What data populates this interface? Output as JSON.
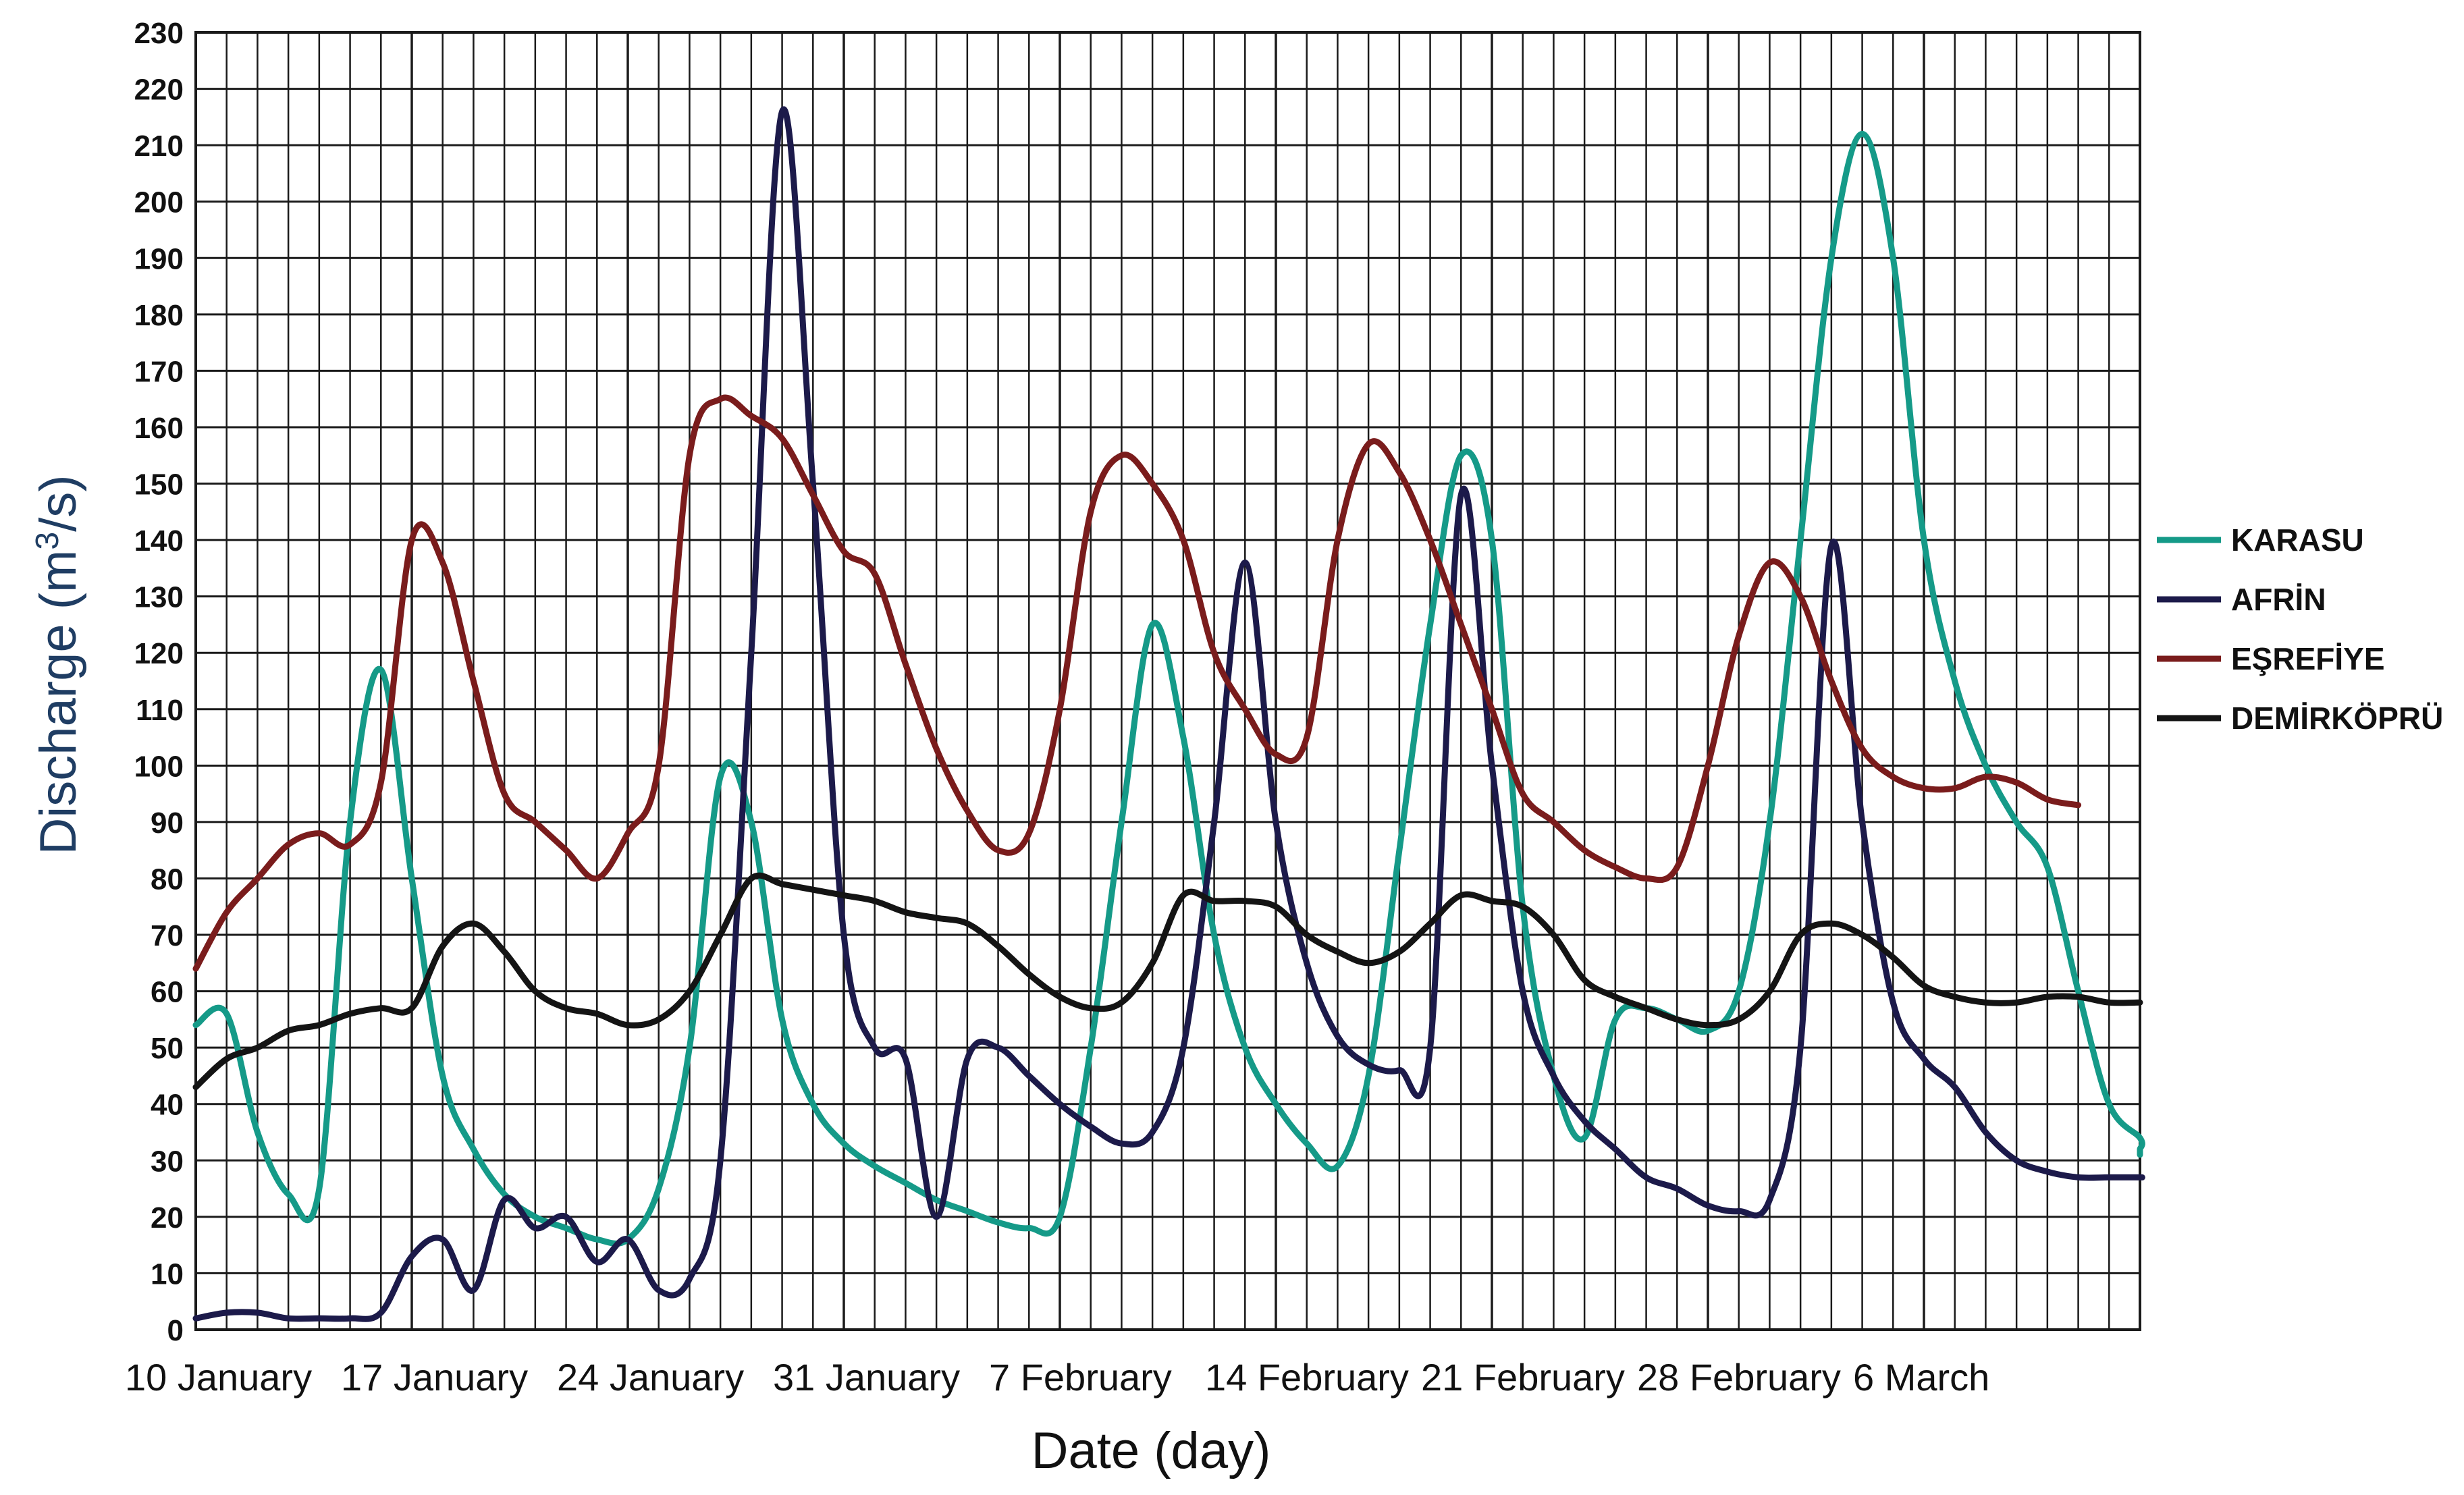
{
  "chart_data": {
    "type": "line",
    "xlabel": "Date (day)",
    "ylabel_main": "Discharge (m",
    "ylabel_sup": "3",
    "ylabel_tail": "/s)",
    "ylim": [
      0,
      230
    ],
    "yticks": [
      0,
      10,
      20,
      30,
      40,
      50,
      60,
      70,
      80,
      90,
      100,
      110,
      120,
      130,
      140,
      150,
      160,
      170,
      180,
      190,
      200,
      210,
      220,
      230
    ],
    "xlim": [
      0,
      63
    ],
    "x_unit": "days since 10 January",
    "xtick_labels": [
      {
        "day": 0,
        "label": "10 January"
      },
      {
        "day": 7,
        "label": "17 January"
      },
      {
        "day": 14,
        "label": "24 January"
      },
      {
        "day": 21,
        "label": "31 January"
      },
      {
        "day": 28,
        "label": "7 February"
      },
      {
        "day": 35,
        "label": "14 February"
      },
      {
        "day": 42,
        "label": "21 February"
      },
      {
        "day": 49,
        "label": "28 February"
      },
      {
        "day": 56,
        "label": "6 March"
      }
    ],
    "grid": true,
    "legend_position": "right",
    "series": [
      {
        "name": "KARASU",
        "color": "#159a88",
        "points": [
          [
            0,
            54
          ],
          [
            1,
            56
          ],
          [
            2,
            35
          ],
          [
            3,
            24
          ],
          [
            4,
            25
          ],
          [
            5,
            90
          ],
          [
            6,
            117
          ],
          [
            7,
            80
          ],
          [
            8,
            45
          ],
          [
            9,
            32
          ],
          [
            10,
            24
          ],
          [
            11,
            20
          ],
          [
            12,
            18
          ],
          [
            13,
            16
          ],
          [
            14,
            16
          ],
          [
            15,
            25
          ],
          [
            16,
            50
          ],
          [
            17,
            98
          ],
          [
            18,
            90
          ],
          [
            19,
            55
          ],
          [
            20,
            40
          ],
          [
            21,
            33
          ],
          [
            22,
            29
          ],
          [
            23,
            26
          ],
          [
            24,
            23
          ],
          [
            25,
            21
          ],
          [
            26,
            19
          ],
          [
            27,
            18
          ],
          [
            28,
            20
          ],
          [
            29,
            50
          ],
          [
            30,
            90
          ],
          [
            31,
            125
          ],
          [
            32,
            105
          ],
          [
            33,
            70
          ],
          [
            34,
            50
          ],
          [
            35,
            40
          ],
          [
            36,
            33
          ],
          [
            37,
            29
          ],
          [
            38,
            45
          ],
          [
            39,
            85
          ],
          [
            40,
            125
          ],
          [
            41,
            155
          ],
          [
            42,
            140
          ],
          [
            43,
            75
          ],
          [
            44,
            45
          ],
          [
            45,
            34
          ],
          [
            46,
            55
          ],
          [
            47,
            57
          ],
          [
            48,
            55
          ],
          [
            49,
            53
          ],
          [
            50,
            60
          ],
          [
            51,
            90
          ],
          [
            52,
            140
          ],
          [
            53,
            190
          ],
          [
            54,
            212
          ],
          [
            55,
            190
          ],
          [
            56,
            140
          ],
          [
            57,
            115
          ],
          [
            58,
            100
          ],
          [
            59,
            90
          ],
          [
            60,
            82
          ],
          [
            61,
            60
          ],
          [
            62,
            40
          ],
          [
            63,
            34
          ],
          [
            64,
            32
          ],
          [
            65,
            32
          ],
          [
            66,
            31
          ]
        ]
      },
      {
        "name": "AFRİN",
        "color": "#1c1a4a",
        "points": [
          [
            0,
            2
          ],
          [
            1,
            3
          ],
          [
            2,
            3
          ],
          [
            3,
            2
          ],
          [
            4,
            2
          ],
          [
            5,
            2
          ],
          [
            6,
            3
          ],
          [
            7,
            13
          ],
          [
            8,
            16
          ],
          [
            9,
            7
          ],
          [
            10,
            23
          ],
          [
            11,
            18
          ],
          [
            12,
            20
          ],
          [
            13,
            12
          ],
          [
            14,
            16
          ],
          [
            15,
            7
          ],
          [
            16,
            9
          ],
          [
            17,
            30
          ],
          [
            18,
            120
          ],
          [
            19,
            216
          ],
          [
            20,
            150
          ],
          [
            21,
            70
          ],
          [
            22,
            50
          ],
          [
            23,
            48
          ],
          [
            24,
            20
          ],
          [
            25,
            48
          ],
          [
            26,
            50
          ],
          [
            27,
            45
          ],
          [
            28,
            40
          ],
          [
            29,
            36
          ],
          [
            30,
            33
          ],
          [
            31,
            35
          ],
          [
            32,
            50
          ],
          [
            33,
            90
          ],
          [
            34,
            136
          ],
          [
            35,
            90
          ],
          [
            36,
            65
          ],
          [
            37,
            52
          ],
          [
            38,
            47
          ],
          [
            39,
            46
          ],
          [
            40,
            50
          ],
          [
            41,
            148
          ],
          [
            42,
            100
          ],
          [
            43,
            60
          ],
          [
            44,
            45
          ],
          [
            45,
            37
          ],
          [
            46,
            32
          ],
          [
            47,
            27
          ],
          [
            48,
            25
          ],
          [
            49,
            22
          ],
          [
            50,
            21
          ],
          [
            51,
            23
          ],
          [
            52,
            50
          ],
          [
            53,
            139
          ],
          [
            54,
            90
          ],
          [
            55,
            58
          ],
          [
            56,
            48
          ],
          [
            57,
            43
          ],
          [
            58,
            35
          ],
          [
            59,
            30
          ],
          [
            60,
            28
          ],
          [
            61,
            27
          ],
          [
            62,
            27
          ],
          [
            63,
            27
          ],
          [
            64,
            27
          ]
        ]
      },
      {
        "name": "EŞREFİYE",
        "color": "#7a1c1c",
        "points": [
          [
            0,
            64
          ],
          [
            1,
            74
          ],
          [
            2,
            80
          ],
          [
            3,
            86
          ],
          [
            4,
            88
          ],
          [
            5,
            86
          ],
          [
            6,
            97
          ],
          [
            7,
            140
          ],
          [
            8,
            136
          ],
          [
            9,
            115
          ],
          [
            10,
            95
          ],
          [
            11,
            90
          ],
          [
            12,
            85
          ],
          [
            13,
            80
          ],
          [
            14,
            88
          ],
          [
            15,
            100
          ],
          [
            16,
            155
          ],
          [
            17,
            165
          ],
          [
            18,
            162
          ],
          [
            19,
            158
          ],
          [
            20,
            148
          ],
          [
            21,
            138
          ],
          [
            22,
            134
          ],
          [
            23,
            118
          ],
          [
            24,
            103
          ],
          [
            25,
            92
          ],
          [
            26,
            85
          ],
          [
            27,
            88
          ],
          [
            28,
            110
          ],
          [
            29,
            145
          ],
          [
            30,
            155
          ],
          [
            31,
            150
          ],
          [
            32,
            140
          ],
          [
            33,
            120
          ],
          [
            34,
            110
          ],
          [
            35,
            102
          ],
          [
            36,
            105
          ],
          [
            37,
            140
          ],
          [
            38,
            157
          ],
          [
            39,
            152
          ],
          [
            40,
            140
          ],
          [
            41,
            125
          ],
          [
            42,
            110
          ],
          [
            43,
            95
          ],
          [
            44,
            90
          ],
          [
            45,
            85
          ],
          [
            46,
            82
          ],
          [
            47,
            80
          ],
          [
            48,
            82
          ],
          [
            49,
            100
          ],
          [
            50,
            123
          ],
          [
            51,
            136
          ],
          [
            52,
            130
          ],
          [
            53,
            115
          ],
          [
            54,
            103
          ],
          [
            55,
            98
          ],
          [
            56,
            96
          ],
          [
            57,
            96
          ],
          [
            58,
            98
          ],
          [
            59,
            97
          ],
          [
            60,
            94
          ],
          [
            61,
            93
          ]
        ]
      },
      {
        "name": "DEMİRKÖPRÜ",
        "color": "#141414",
        "points": [
          [
            0,
            43
          ],
          [
            1,
            48
          ],
          [
            2,
            50
          ],
          [
            3,
            53
          ],
          [
            4,
            54
          ],
          [
            5,
            56
          ],
          [
            6,
            57
          ],
          [
            7,
            57
          ],
          [
            8,
            68
          ],
          [
            9,
            72
          ],
          [
            10,
            67
          ],
          [
            11,
            60
          ],
          [
            12,
            57
          ],
          [
            13,
            56
          ],
          [
            14,
            54
          ],
          [
            15,
            55
          ],
          [
            16,
            60
          ],
          [
            17,
            70
          ],
          [
            18,
            80
          ],
          [
            19,
            79
          ],
          [
            20,
            78
          ],
          [
            21,
            77
          ],
          [
            22,
            76
          ],
          [
            23,
            74
          ],
          [
            24,
            73
          ],
          [
            25,
            72
          ],
          [
            26,
            68
          ],
          [
            27,
            63
          ],
          [
            28,
            59
          ],
          [
            29,
            57
          ],
          [
            30,
            58
          ],
          [
            31,
            65
          ],
          [
            32,
            77
          ],
          [
            33,
            76
          ],
          [
            34,
            76
          ],
          [
            35,
            75
          ],
          [
            36,
            70
          ],
          [
            37,
            67
          ],
          [
            38,
            65
          ],
          [
            39,
            67
          ],
          [
            40,
            72
          ],
          [
            41,
            77
          ],
          [
            42,
            76
          ],
          [
            43,
            75
          ],
          [
            44,
            70
          ],
          [
            45,
            62
          ],
          [
            46,
            59
          ],
          [
            47,
            57
          ],
          [
            48,
            55
          ],
          [
            49,
            54
          ],
          [
            50,
            55
          ],
          [
            51,
            60
          ],
          [
            52,
            70
          ],
          [
            53,
            72
          ],
          [
            54,
            70
          ],
          [
            55,
            66
          ],
          [
            56,
            61
          ],
          [
            57,
            59
          ],
          [
            58,
            58
          ],
          [
            59,
            58
          ],
          [
            60,
            59
          ],
          [
            61,
            59
          ],
          [
            62,
            58
          ],
          [
            63,
            58
          ]
        ]
      }
    ]
  },
  "legend": {
    "items": [
      {
        "label": "KARASU",
        "color": "#159a88"
      },
      {
        "label": "AFRİN",
        "color": "#1c1a4a"
      },
      {
        "label": "EŞREFİYE",
        "color": "#7a1c1c"
      },
      {
        "label": "DEMİRKÖPRÜ",
        "color": "#141414"
      }
    ]
  }
}
